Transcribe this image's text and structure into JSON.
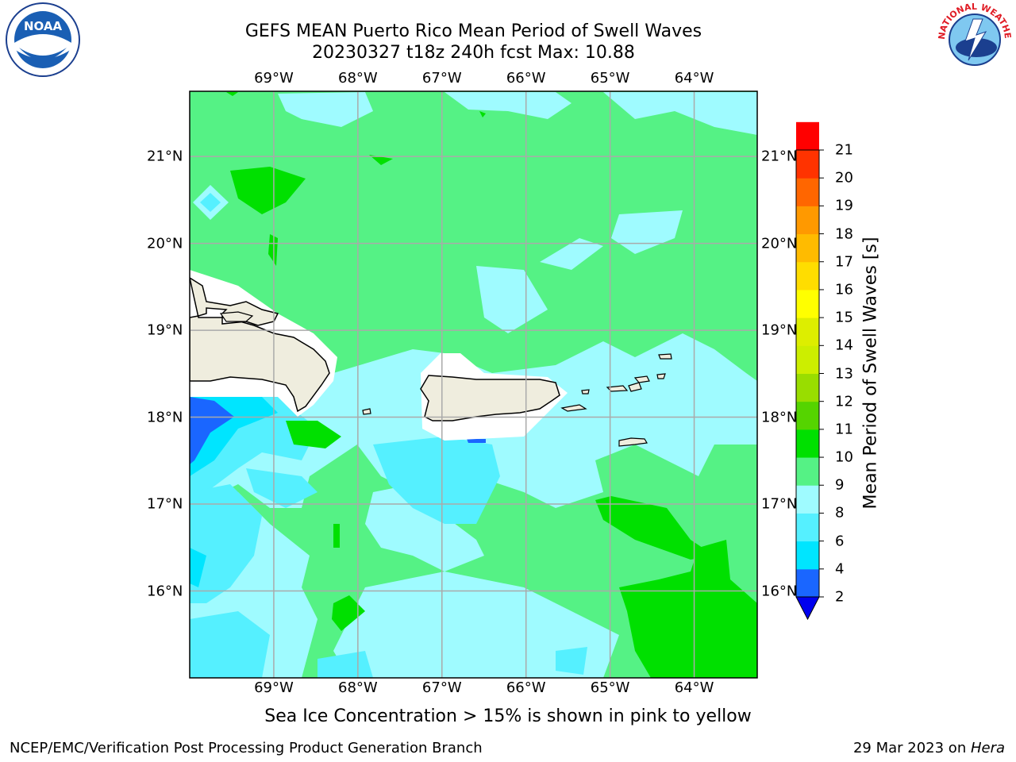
{
  "title": {
    "line1": "GEFS MEAN Puerto Rico Mean Period of Swell Waves",
    "line2": "20230327 t18z 240h fcst   Max: 10.88"
  },
  "logos": {
    "left": "NOAA",
    "right": "NATIONAL WEATHER SERVICE"
  },
  "map": {
    "lon_labels": [
      "69°W",
      "68°W",
      "67°W",
      "66°W",
      "65°W",
      "64°W"
    ],
    "lat_labels": [
      "21°N",
      "20°N",
      "19°N",
      "18°N",
      "17°N",
      "16°N"
    ],
    "lon_range": [
      -70.0,
      -63.25
    ],
    "lat_range": [
      15.0,
      21.75
    ]
  },
  "colorbar": {
    "title": "Mean Period of Swell Waves [s]",
    "levels": [
      "2",
      "4",
      "6",
      "8",
      "9",
      "10",
      "11",
      "12",
      "13",
      "14",
      "15",
      "16",
      "17",
      "18",
      "19",
      "20",
      "21"
    ],
    "colors": [
      "#1a66ff",
      "#00e5ff",
      "#55f0ff",
      "#9ffbff",
      "#55f285",
      "#00e000",
      "#55d400",
      "#99dd00",
      "#ccee00",
      "#ddee00",
      "#ffff00",
      "#ffdd00",
      "#ffbb00",
      "#ff9900",
      "#ff6600",
      "#ff3300",
      "#ff0000"
    ],
    "under_color": "#0000ee"
  },
  "footnote": "Sea Ice Concentration > 15% is shown in pink to yellow",
  "footer": {
    "left": "NCEP/EMC/Verification Post Processing Product Generation Branch",
    "right_date": "29 Mar 2023 on ",
    "right_machine": "Hera"
  }
}
